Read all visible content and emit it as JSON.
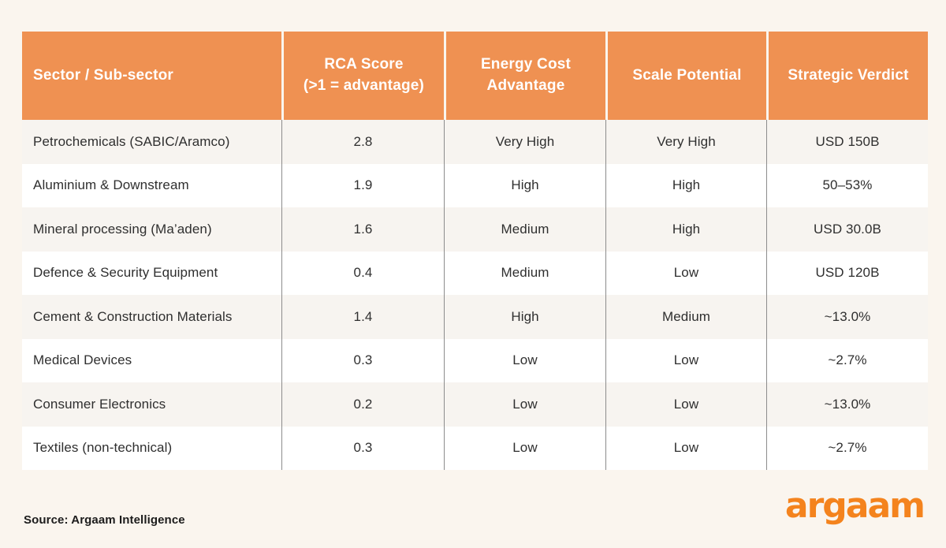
{
  "page": {
    "background": "#faf5ee",
    "source_note": "Source: Argaam Intelligence",
    "brand_logo_text": "argaam"
  },
  "colors": {
    "header_bg": "#ef9152",
    "header_text": "#ffffff",
    "row_alt_bg": "#f7f4f0",
    "row_bg": "#ffffff",
    "divider_line": "#8c8c8c",
    "logo_orange": "#f4831d",
    "body_text": "#2f2f2f"
  },
  "chart_data": {
    "type": "table",
    "columns": [
      "Sector / Sub-sector",
      "RCA Score\n(>1 = advantage)",
      "Energy Cost\nAdvantage",
      "Scale Potential",
      "Strategic Verdict"
    ],
    "rows": [
      [
        "Petrochemicals (SABIC/Aramco)",
        "2.8",
        "Very High",
        "Very High",
        "USD 150B"
      ],
      [
        "Aluminium & Downstream",
        "1.9",
        "High",
        "High",
        "50–53%"
      ],
      [
        "Mineral processing (Ma’aden)",
        "1.6",
        "Medium",
        "High",
        "USD 30.0B"
      ],
      [
        "Defence & Security Equipment",
        "0.4",
        "Medium",
        "Low",
        "USD 120B"
      ],
      [
        "Cement & Construction Materials",
        "1.4",
        "High",
        "Medium",
        "~13.0%"
      ],
      [
        "Medical Devices",
        "0.3",
        "Low",
        "Low",
        "~2.7%"
      ],
      [
        "Consumer Electronics",
        "0.2",
        "Low",
        "Low",
        "~13.0%"
      ],
      [
        "Textiles (non-technical)",
        "0.3",
        "Low",
        "Low",
        "~2.7%"
      ]
    ]
  }
}
